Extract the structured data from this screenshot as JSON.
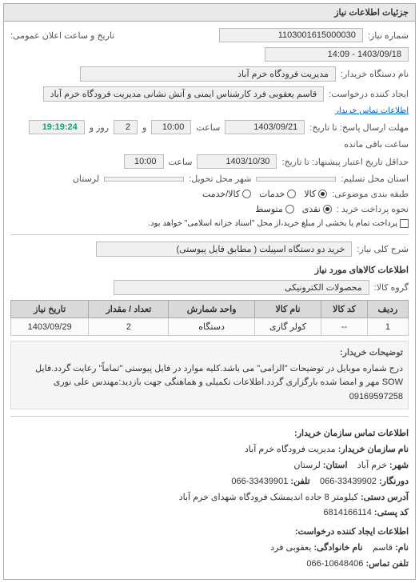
{
  "panel_title": "جزئیات اطلاعات نیاز",
  "header": {
    "req_no_label": "شماره نیاز:",
    "req_no": "1103001615000030",
    "announce_label": "تاریخ و ساعت اعلان عمومی:",
    "announce_value": "1403/09/18 - 14:09",
    "buyer_label": "نام دستگاه خریدار:",
    "buyer_value": "مدیریت فرودگاه خرم آباد",
    "creator_label": "ایجاد کننده درخواست:",
    "creator_value": "قاسم یعقوبی فرد کارشناس ایمنی و آتش نشانی مدیریت فرودگاه خرم آباد",
    "contact_link": "اطلاعات تماس خریدار",
    "deadline_from_label": "مهلت ارسال پاسخ: تا تاریخ:",
    "deadline_date": "1403/09/21",
    "time_label": "ساعت",
    "deadline_time": "10:00",
    "and_label": "و",
    "days_value": "2",
    "days_label": "روز و",
    "remain_time": "19:19:24",
    "remain_label": "ساعت باقی مانده",
    "delivery_from_label": "حداقل تاریخ اعتبار پیشنهاد: تا تاریخ:",
    "delivery_date": "1403/10/30",
    "delivery_time": "10:00",
    "state_label": "استان محل تسلیم:",
    "city_label": "شهر محل تحویل:",
    "lorestan": "لرستان",
    "category_label": "طبقه بندی موضوعی:",
    "radio_kala": "کالا",
    "radio_khadamat": "خدمات",
    "radio_kala_khadamat": "کالا/خدمت",
    "payment_label": "نحوه پرداخت خرید :",
    "radio_naqdi": "نقدی",
    "radio_etebari": "متوسط",
    "payment_note": "پرداخت تمام یا بخشی از مبلغ خرید،از محل \"اسناد خزانه اسلامی\" خواهد بود.",
    "desc_label": "شرح کلی نیاز:",
    "desc_value": "خرید دو دستگاه اسپیلت ( مطابق فایل پیوستی)"
  },
  "items_section": {
    "title": "اطلاعات کالاهای مورد نیاز",
    "group_label": "گروه کالا:",
    "group_value": "محصولات الکترونیکی",
    "columns": [
      "ردیف",
      "کد کالا",
      "نام کالا",
      "واحد شمارش",
      "تعداد / مقدار",
      "تاریخ نیاز"
    ],
    "rows": [
      [
        "1",
        "--",
        "کولر گازی",
        "دستگاه",
        "2",
        "1403/09/29"
      ]
    ]
  },
  "notes": {
    "label": "توضیحات خریدار:",
    "text": "درج شماره موبایل در توضیحات \"الزامی\" می باشد.کلیه موارد در فایل پیوستی \"تماماً\" رعایت گردد.فایل SOW مهر و امضا شده بارگزاری گردد.اطلاعات تکمیلی و هماهنگی جهت بازدید:مهندس علی نوری 09169597258"
  },
  "footer_contact": {
    "title": "اطلاعات تماس سازمان خریدار:",
    "org_label": "نام سازمان خریدار:",
    "org": "مدیریت فرودگاه خرم آباد",
    "city_label": "شهر:",
    "city": "خرم آباد",
    "province_label": "استان:",
    "province": "لرستان",
    "fax_label": "دورنگار:",
    "fax": "33439902-066",
    "phone_label": "تلفن:",
    "phone": "33439901-066",
    "addr_label": "آدرس دستی:",
    "addr": "کیلومتر 8 جاده اندیمشک فرودگاه شهدای خرم آباد",
    "post_label": "کد پستی:",
    "post": "6814166114",
    "req_creator_title": "اطلاعات ایجاد کننده درخواست:",
    "name_label": "نام:",
    "name": "قاسم",
    "lname_label": "نام خانوادگی:",
    "lname": "یعقوبی فرد",
    "tel_label": "تلفن تماس:",
    "tel": "10648406-066"
  }
}
